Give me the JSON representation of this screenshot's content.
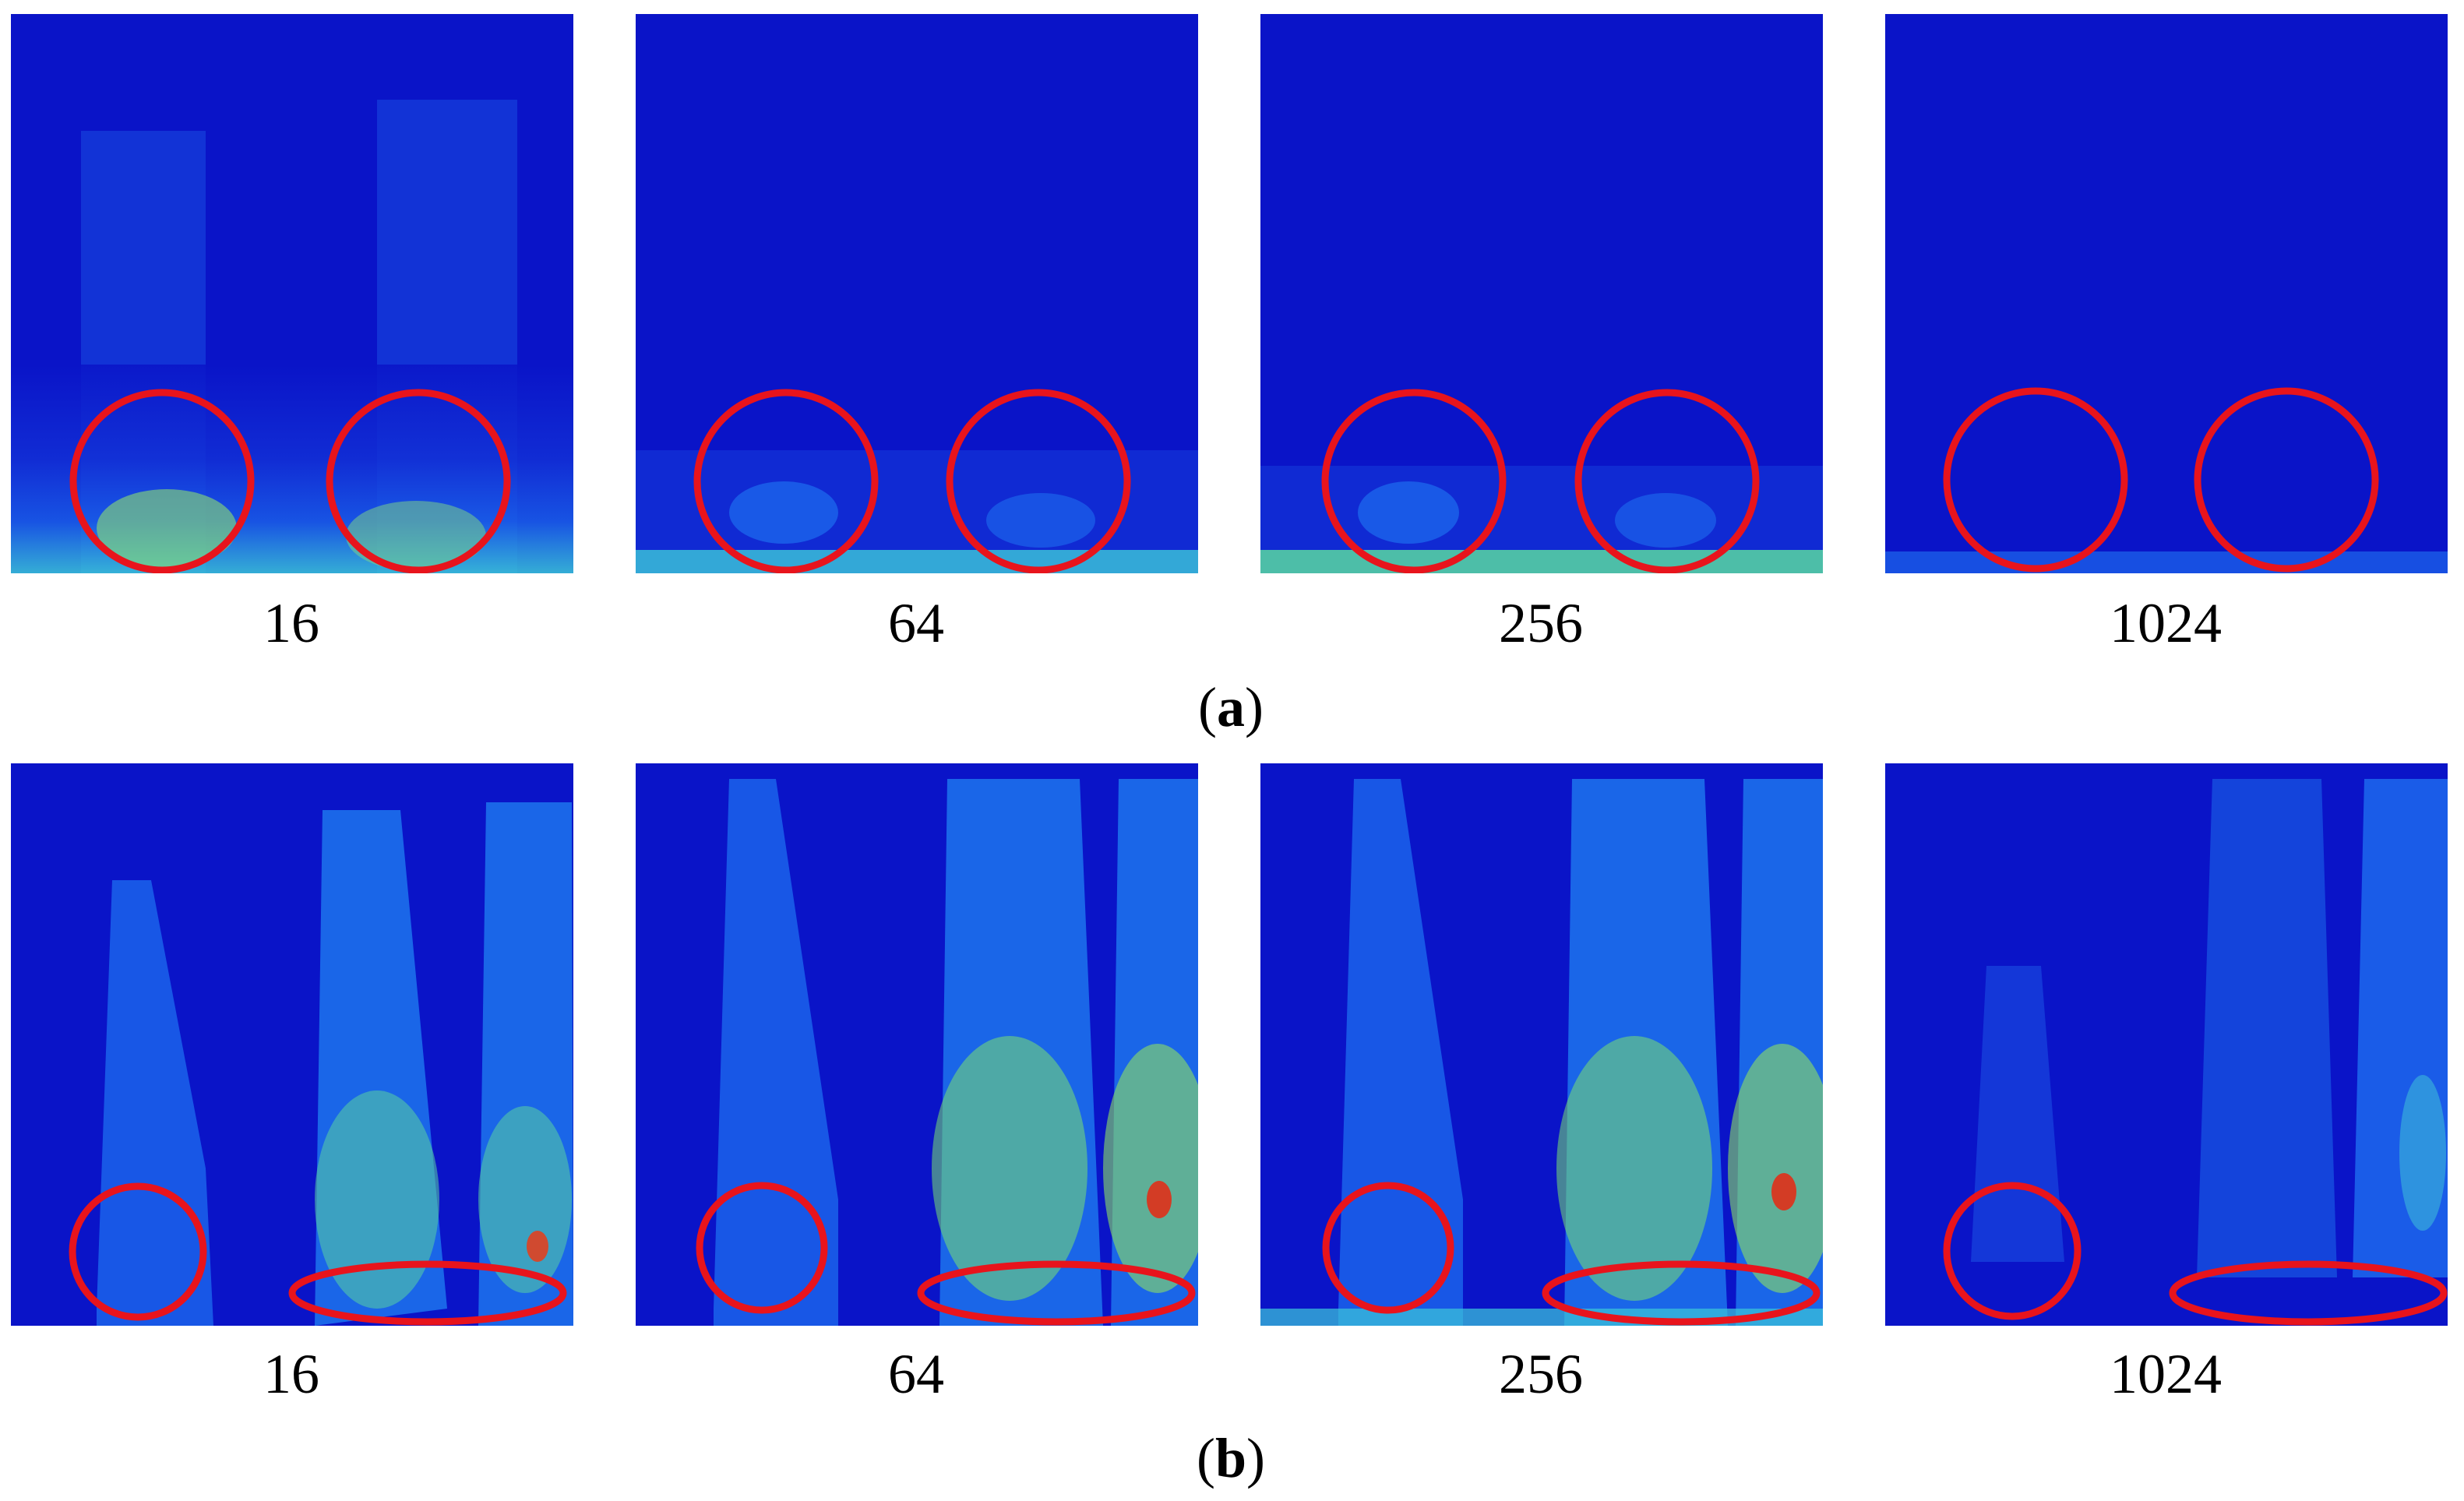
{
  "figure": {
    "row_a": {
      "caption_open": "(",
      "caption_letter": "a",
      "caption_close": ")",
      "panels": [
        {
          "label": "16"
        },
        {
          "label": "64"
        },
        {
          "label": "256"
        },
        {
          "label": "1024"
        }
      ]
    },
    "row_b": {
      "caption_open": "(",
      "caption_letter": "b",
      "caption_close": ")",
      "panels": [
        {
          "label": "16"
        },
        {
          "label": "64"
        },
        {
          "label": "256"
        },
        {
          "label": "1024"
        }
      ]
    }
  },
  "colors": {
    "background_blue": "#0a14c8",
    "annotation_red": "#e8141c"
  }
}
